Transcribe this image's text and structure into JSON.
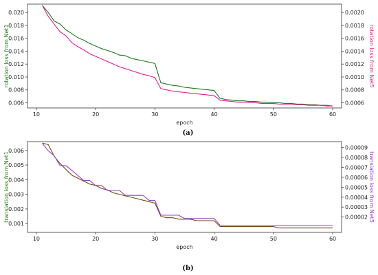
{
  "chart_data": [
    {
      "type": "line",
      "caption": "(a)",
      "xlabel": "epoch",
      "ylabel_left": "rotation loss from Net1",
      "ylabel_right": "rotation loss from Net5",
      "xlim": [
        8.5,
        61.5
      ],
      "ylim_left": [
        0.0052,
        0.0213
      ],
      "ylim_right": [
        0.00052,
        0.00213
      ],
      "x_ticks": [
        "10",
        "20",
        "30",
        "40",
        "50",
        "60"
      ],
      "y_ticks_left": [
        "0.006",
        "0.008",
        "0.010",
        "0.012",
        "0.014",
        "0.016",
        "0.018",
        "0.020"
      ],
      "y_ticks_right": [
        "0.0006",
        "0.0008",
        "0.0010",
        "0.0012",
        "0.0014",
        "0.0016",
        "0.0018",
        "0.0020"
      ],
      "colors": {
        "left": "#1a7a1a",
        "right": "#e8198c"
      },
      "series": [
        {
          "axis": "left",
          "x": [
            11,
            12,
            13,
            14,
            15,
            16,
            17,
            18,
            19,
            20,
            21,
            22,
            23,
            24,
            25,
            26,
            27,
            28,
            29,
            30,
            31,
            32,
            33,
            34,
            35,
            36,
            37,
            38,
            39,
            40,
            41,
            42,
            43,
            44,
            45,
            46,
            47,
            48,
            49,
            50,
            51,
            52,
            53,
            54,
            55,
            56,
            57,
            58,
            59,
            60
          ],
          "values": [
            0.0211,
            0.02,
            0.0187,
            0.0182,
            0.0173,
            0.0167,
            0.0161,
            0.0157,
            0.0152,
            0.0148,
            0.0144,
            0.0141,
            0.0138,
            0.0134,
            0.0133,
            0.0129,
            0.0127,
            0.0125,
            0.0123,
            0.0121,
            0.0091,
            0.0089,
            0.0087,
            0.0086,
            0.0084,
            0.0083,
            0.0082,
            0.0081,
            0.008,
            0.0079,
            0.0067,
            0.0065,
            0.0064,
            0.0063,
            0.0063,
            0.0062,
            0.0062,
            0.0061,
            0.0061,
            0.006,
            0.006,
            0.0059,
            0.0059,
            0.0058,
            0.0058,
            0.0057,
            0.0057,
            0.0056,
            0.0056,
            0.0055
          ]
        },
        {
          "axis": "right",
          "x": [
            11,
            12,
            13,
            14,
            15,
            16,
            17,
            18,
            19,
            20,
            21,
            22,
            23,
            24,
            25,
            26,
            27,
            28,
            29,
            30,
            31,
            32,
            33,
            34,
            35,
            36,
            37,
            38,
            39,
            40,
            41,
            42,
            43,
            44,
            45,
            46,
            47,
            48,
            49,
            50,
            51,
            52,
            53,
            54,
            55,
            56,
            57,
            58,
            59,
            60
          ],
          "values": [
            0.00211,
            0.00194,
            0.00182,
            0.0017,
            0.00164,
            0.00153,
            0.00147,
            0.00142,
            0.00136,
            0.00132,
            0.00128,
            0.00124,
            0.0012,
            0.00116,
            0.00113,
            0.0011,
            0.00107,
            0.00104,
            0.00102,
            0.00099,
            0.00082,
            0.0008,
            0.00078,
            0.00077,
            0.00076,
            0.00075,
            0.00074,
            0.00073,
            0.00072,
            0.00071,
            0.00064,
            0.00063,
            0.00062,
            0.00061,
            0.00061,
            0.0006,
            0.0006,
            0.00059,
            0.00059,
            0.00059,
            0.00058,
            0.00058,
            0.00058,
            0.00057,
            0.00057,
            0.00056,
            0.00056,
            0.00056,
            0.00055,
            0.00055
          ]
        }
      ]
    },
    {
      "type": "line",
      "caption": "(b)",
      "xlabel": "epoch",
      "ylabel_left": "translation loss from Net1",
      "ylabel_right": "translation loss from Net5",
      "xlim": [
        8.5,
        61.5
      ],
      "ylim_left": [
        0.0004,
        0.0066
      ],
      "ylim_right": [
        4.5e-06,
        9.6e-05
      ],
      "x_ticks": [
        "10",
        "20",
        "30",
        "40",
        "50",
        "60"
      ],
      "y_ticks_left": [
        "0.001",
        "0.002",
        "0.003",
        "0.004",
        "0.005",
        "0.006"
      ],
      "y_ticks_right": [
        "0.00002",
        "0.00003",
        "0.00004",
        "0.00005",
        "0.00006",
        "0.00007",
        "0.00008",
        "0.00009"
      ],
      "colors": {
        "left": "#2f7a14",
        "right": "#9b3fc2",
        "overlap": "#6b4a10"
      },
      "series": [
        {
          "axis": "left",
          "x": [
            11,
            12,
            13,
            14,
            15,
            16,
            17,
            18,
            19,
            20,
            21,
            22,
            23,
            24,
            25,
            26,
            27,
            28,
            29,
            30,
            31,
            32,
            33,
            34,
            35,
            36,
            37,
            38,
            39,
            40,
            41,
            42,
            43,
            44,
            45,
            46,
            47,
            48,
            49,
            50,
            51,
            52,
            53,
            54,
            55,
            56,
            57,
            58,
            59,
            60
          ],
          "values": [
            0.0065,
            0.0064,
            0.0056,
            0.0051,
            0.0047,
            0.0043,
            0.0041,
            0.0039,
            0.0037,
            0.0036,
            0.0034,
            0.0033,
            0.0031,
            0.003,
            0.0029,
            0.0028,
            0.0027,
            0.0026,
            0.0025,
            0.0024,
            0.0015,
            0.0014,
            0.0014,
            0.0013,
            0.0013,
            0.0013,
            0.0012,
            0.0012,
            0.0012,
            0.0012,
            0.0008,
            0.0008,
            0.0008,
            0.0008,
            0.0008,
            0.0008,
            0.0008,
            0.0008,
            0.0008,
            0.0008,
            0.0007,
            0.0007,
            0.0007,
            0.0007,
            0.0007,
            0.0007,
            0.0007,
            0.0007,
            0.0007,
            0.0007
          ]
        },
        {
          "axis": "right",
          "x": [
            11,
            12,
            13,
            14,
            15,
            16,
            17,
            18,
            19,
            20,
            21,
            22,
            23,
            24,
            25,
            26,
            27,
            28,
            29,
            30,
            31,
            32,
            33,
            34,
            35,
            36,
            37,
            38,
            39,
            40,
            41,
            42,
            43,
            44,
            45,
            46,
            47,
            48,
            49,
            50,
            51,
            52,
            53,
            54,
            55,
            56,
            57,
            58,
            59,
            60
          ],
          "values": [
            9.43e-05,
            8.68e-05,
            8.18e-05,
            7.18e-05,
            7.18e-05,
            6.68e-05,
            6.18e-05,
            5.68e-05,
            5.68e-05,
            5.18e-05,
            5.18e-05,
            4.68e-05,
            4.68e-05,
            4.68e-05,
            4.18e-05,
            4.18e-05,
            4.18e-05,
            4.18e-05,
            3.68e-05,
            3.68e-05,
            2.18e-05,
            2.18e-05,
            2.18e-05,
            2.18e-05,
            1.85e-05,
            1.85e-05,
            1.85e-05,
            1.85e-05,
            1.85e-05,
            1.85e-05,
            1.18e-05,
            1.18e-05,
            1.18e-05,
            1.18e-05,
            1.18e-05,
            1.18e-05,
            1.18e-05,
            1.18e-05,
            1.18e-05,
            1.18e-05,
            1.18e-05,
            1.18e-05,
            1.18e-05,
            1.18e-05,
            1.18e-05,
            1.18e-05,
            1.18e-05,
            1.18e-05,
            1.18e-05,
            1.18e-05
          ]
        }
      ]
    }
  ]
}
